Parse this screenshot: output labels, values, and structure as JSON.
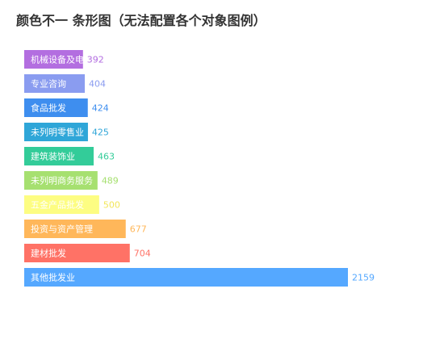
{
  "chart_data": {
    "type": "bar",
    "orientation": "horizontal",
    "title": "颜色不一 条形图（无法配置各个对象图例）",
    "categories": [
      "机械设备及电",
      "专业咨询",
      "食品批发",
      "未列明零售业",
      "建筑装饰业",
      "未列明商务服务",
      "五金产品批发",
      "投资与资产管理",
      "建材批发",
      "其他批发业"
    ],
    "values": [
      392,
      404,
      424,
      425,
      463,
      489,
      500,
      677,
      704,
      2159
    ],
    "colors": [
      "#b36ee0",
      "#8a9cf0",
      "#3e8eef",
      "#2fa6d8",
      "#33cc99",
      "#a6e070",
      "#fdfd82",
      "#ffb75a",
      "#ff7266",
      "#55a8ff"
    ],
    "label_colors": [
      "#b36ee0",
      "#8a9cf0",
      "#3e8eef",
      "#2fa6d8",
      "#33cc99",
      "#a6e070",
      "#f2e65a",
      "#ffb75a",
      "#ff7266",
      "#55a8ff"
    ],
    "xlim": [
      0,
      2159
    ],
    "grid": false,
    "legend": "none"
  }
}
